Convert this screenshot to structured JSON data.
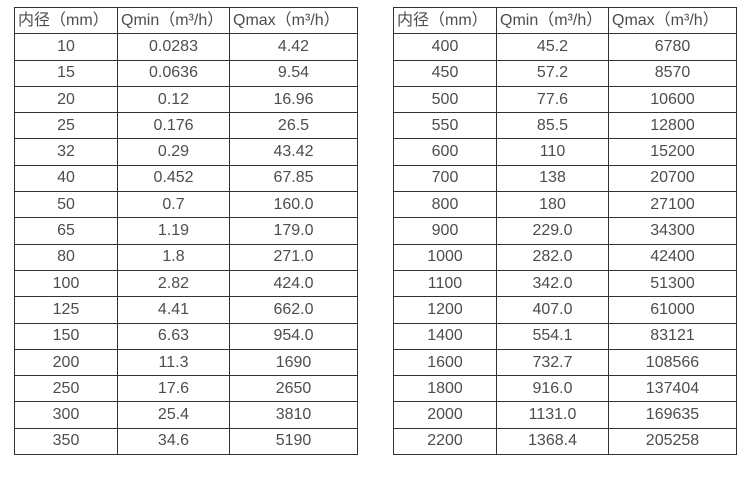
{
  "page": {
    "background_color": "#ffffff",
    "text_color": "#4d4d4d",
    "border_color": "#333333"
  },
  "chart_data": [
    {
      "type": "table",
      "columns": [
        "内径（mm）",
        "Qmin（m³/h）",
        "Qmax（m³/h）"
      ],
      "rows": [
        [
          "10",
          "0.0283",
          "4.42"
        ],
        [
          "15",
          "0.0636",
          "9.54"
        ],
        [
          "20",
          "0.12",
          "16.96"
        ],
        [
          "25",
          "0.176",
          "26.5"
        ],
        [
          "32",
          "0.29",
          "43.42"
        ],
        [
          "40",
          "0.452",
          "67.85"
        ],
        [
          "50",
          "0.7",
          "160.0"
        ],
        [
          "65",
          "1.19",
          "179.0"
        ],
        [
          "80",
          "1.8",
          "271.0"
        ],
        [
          "100",
          "2.82",
          "424.0"
        ],
        [
          "125",
          "4.41",
          "662.0"
        ],
        [
          "150",
          "6.63",
          "954.0"
        ],
        [
          "200",
          "11.3",
          "1690"
        ],
        [
          "250",
          "17.6",
          "2650"
        ],
        [
          "300",
          "25.4",
          "3810"
        ],
        [
          "350",
          "34.6",
          "5190"
        ]
      ]
    },
    {
      "type": "table",
      "columns": [
        "内径（mm）",
        "Qmin（m³/h）",
        "Qmax（m³/h）"
      ],
      "rows": [
        [
          "400",
          "45.2",
          "6780"
        ],
        [
          "450",
          "57.2",
          "8570"
        ],
        [
          "500",
          "77.6",
          "10600"
        ],
        [
          "550",
          "85.5",
          "12800"
        ],
        [
          "600",
          "110",
          "15200"
        ],
        [
          "700",
          "138",
          "20700"
        ],
        [
          "800",
          "180",
          "27100"
        ],
        [
          "900",
          "229.0",
          "34300"
        ],
        [
          "1000",
          "282.0",
          "42400"
        ],
        [
          "1100",
          "342.0",
          "51300"
        ],
        [
          "1200",
          "407.0",
          "61000"
        ],
        [
          "1400",
          "554.1",
          "83121"
        ],
        [
          "1600",
          "732.7",
          "108566"
        ],
        [
          "1800",
          "916.0",
          "137404"
        ],
        [
          "2000",
          "1131.0",
          "169635"
        ],
        [
          "2200",
          "1368.4",
          "205258"
        ]
      ]
    }
  ]
}
